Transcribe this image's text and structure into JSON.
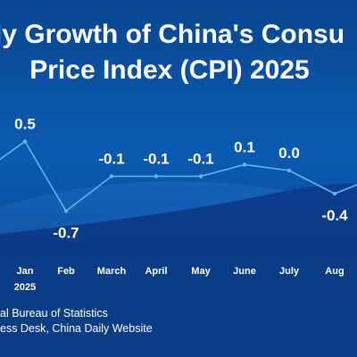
{
  "header": {
    "title_line1": "ly Growth of China's Consu",
    "title_line2": "Price Index (CPI) 2025"
  },
  "footer": {
    "source_line": "al Bureau of Statistics",
    "credit_line": "ess Desk, China Daily Website"
  },
  "colors": {
    "line": "#5fb8f0",
    "value_labels": "#ffffff",
    "background": "#0b4fa0"
  },
  "chart_data": {
    "type": "line",
    "title": "",
    "xlabel": "",
    "ylabel": "",
    "categories": [
      "Jan",
      "Feb",
      "March",
      "April",
      "May",
      "June",
      "July",
      "Aug"
    ],
    "category_sublabels": [
      "2025",
      "",
      "",
      "",
      "",
      "",
      "",
      ""
    ],
    "series": [
      {
        "values": [
          0.5,
          -0.7,
          -0.1,
          -0.1,
          -0.1,
          0.1,
          0.0,
          -0.4
        ]
      }
    ],
    "value_labels": [
      "0.5",
      "-0.7",
      "-0.1",
      "-0.1",
      "-0.1",
      "0.1",
      "0.0",
      "-0.4"
    ],
    "grid": false,
    "legend": "none"
  }
}
